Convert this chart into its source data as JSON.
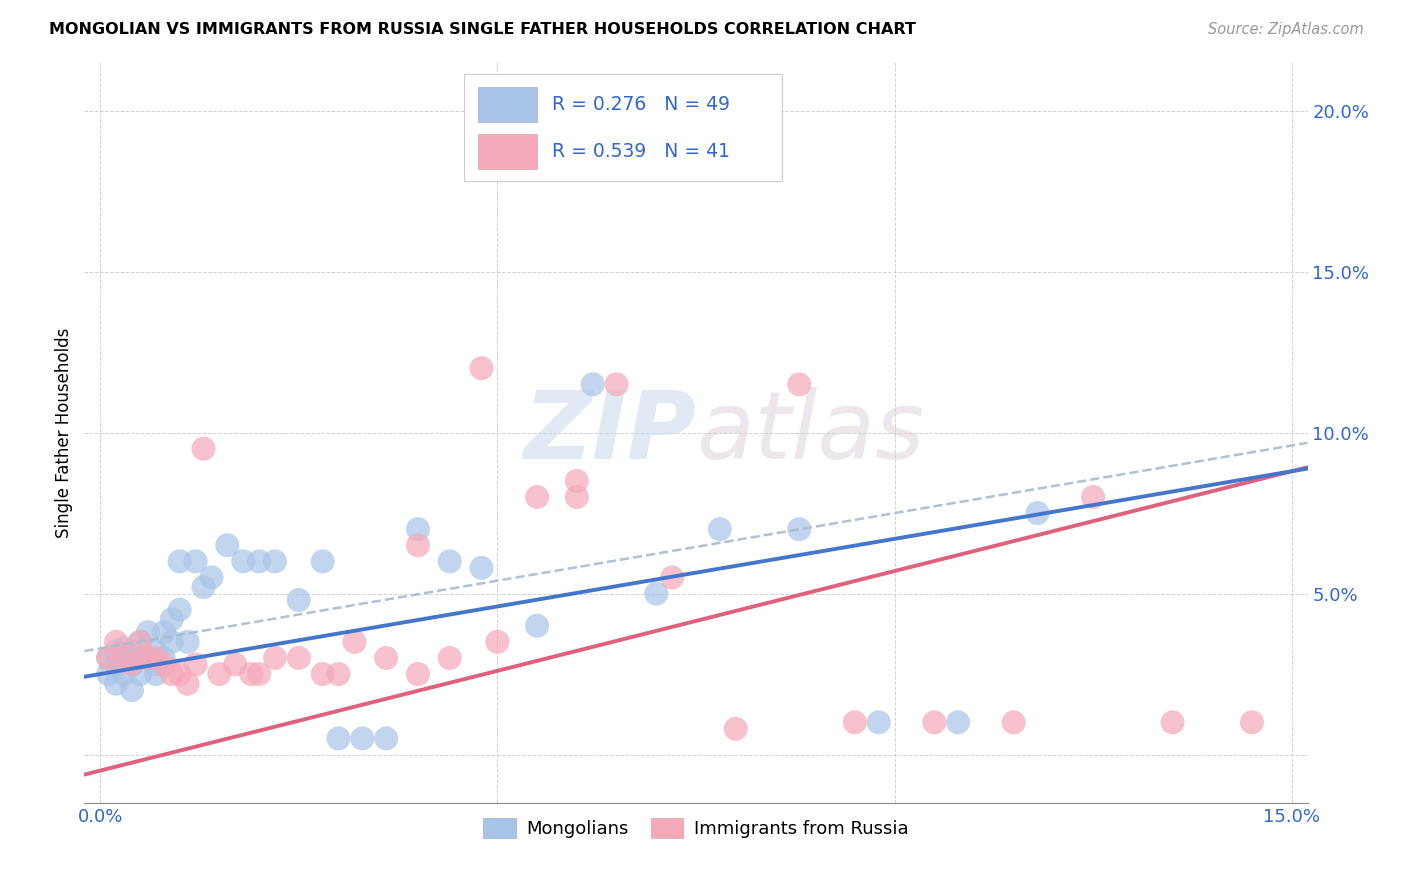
{
  "title": "MONGOLIAN VS IMMIGRANTS FROM RUSSIA SINGLE FATHER HOUSEHOLDS CORRELATION CHART",
  "source": "Source: ZipAtlas.com",
  "ylabel": "Single Father Households",
  "xlim": [
    -0.002,
    0.152
  ],
  "ylim": [
    -0.015,
    0.215
  ],
  "xticks": [
    0.0,
    0.05,
    0.1,
    0.15
  ],
  "yticks": [
    0.0,
    0.05,
    0.1,
    0.15,
    0.2
  ],
  "xtick_labels": [
    "0.0%",
    "",
    "",
    "15.0%"
  ],
  "ytick_labels": [
    "",
    "5.0%",
    "10.0%",
    "15.0%",
    "20.0%"
  ],
  "mongolian_R": 0.276,
  "mongolian_N": 49,
  "russia_R": 0.539,
  "russia_N": 41,
  "mongolian_color": "#a8c4e8",
  "russia_color": "#f5a8b8",
  "mongolian_line_color": "#4477cc",
  "russia_line_color": "#e06080",
  "dashed_line_color": "#aabbcc",
  "mongolian_x": [
    0.001,
    0.001,
    0.002,
    0.002,
    0.002,
    0.003,
    0.003,
    0.003,
    0.004,
    0.004,
    0.004,
    0.005,
    0.005,
    0.005,
    0.006,
    0.006,
    0.007,
    0.007,
    0.007,
    0.008,
    0.008,
    0.009,
    0.009,
    0.01,
    0.01,
    0.011,
    0.012,
    0.013,
    0.014,
    0.016,
    0.018,
    0.02,
    0.022,
    0.025,
    0.028,
    0.03,
    0.033,
    0.036,
    0.04,
    0.044,
    0.048,
    0.055,
    0.062,
    0.07,
    0.078,
    0.088,
    0.098,
    0.108,
    0.118
  ],
  "mongolian_y": [
    0.025,
    0.03,
    0.032,
    0.028,
    0.022,
    0.03,
    0.025,
    0.033,
    0.028,
    0.032,
    0.02,
    0.03,
    0.035,
    0.025,
    0.03,
    0.038,
    0.032,
    0.028,
    0.025,
    0.038,
    0.03,
    0.042,
    0.035,
    0.045,
    0.06,
    0.035,
    0.06,
    0.052,
    0.055,
    0.065,
    0.06,
    0.06,
    0.06,
    0.048,
    0.06,
    0.005,
    0.005,
    0.005,
    0.07,
    0.06,
    0.058,
    0.04,
    0.115,
    0.05,
    0.07,
    0.07,
    0.01,
    0.01,
    0.075
  ],
  "russia_x": [
    0.001,
    0.002,
    0.003,
    0.004,
    0.005,
    0.006,
    0.007,
    0.008,
    0.009,
    0.01,
    0.011,
    0.012,
    0.013,
    0.015,
    0.017,
    0.019,
    0.022,
    0.025,
    0.028,
    0.032,
    0.036,
    0.04,
    0.044,
    0.048,
    0.055,
    0.06,
    0.065,
    0.072,
    0.08,
    0.088,
    0.095,
    0.105,
    0.115,
    0.125,
    0.135,
    0.145,
    0.02,
    0.03,
    0.04,
    0.05,
    0.06
  ],
  "russia_y": [
    0.03,
    0.035,
    0.03,
    0.028,
    0.035,
    0.03,
    0.03,
    0.028,
    0.025,
    0.025,
    0.022,
    0.028,
    0.095,
    0.025,
    0.028,
    0.025,
    0.03,
    0.03,
    0.025,
    0.035,
    0.03,
    0.025,
    0.03,
    0.12,
    0.08,
    0.085,
    0.115,
    0.055,
    0.008,
    0.115,
    0.01,
    0.01,
    0.01,
    0.08,
    0.01,
    0.01,
    0.025,
    0.025,
    0.065,
    0.035,
    0.08
  ],
  "mon_slope": 0.42,
  "mon_intercept": 0.025,
  "rus_slope": 0.62,
  "rus_intercept": -0.005
}
